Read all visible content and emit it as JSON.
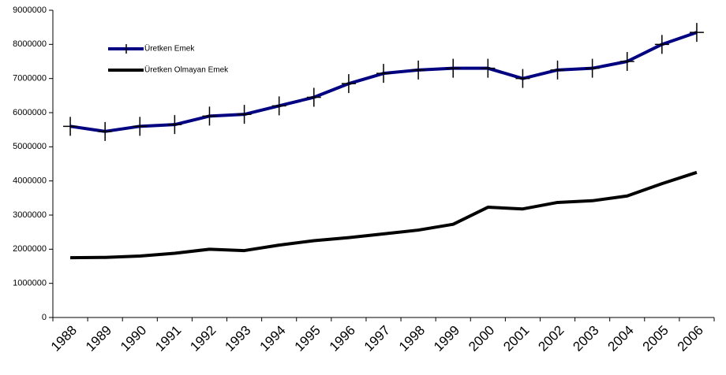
{
  "chart_data": {
    "type": "line",
    "categories": [
      "1988",
      "1989",
      "1990",
      "1991",
      "1992",
      "1993",
      "1994",
      "1995",
      "1996",
      "1997",
      "1998",
      "1999",
      "2000",
      "2001",
      "2002",
      "2003",
      "2004",
      "2005",
      "2006"
    ],
    "series": [
      {
        "name": "Üretken Emek",
        "color": "#000080",
        "marker": "+",
        "values": [
          5600000,
          5450000,
          5600000,
          5650000,
          5900000,
          5950000,
          6200000,
          6450000,
          6850000,
          7150000,
          7250000,
          7300000,
          7300000,
          7000000,
          7250000,
          7300000,
          7500000,
          8000000,
          8350000
        ]
      },
      {
        "name": "Üretken Olmayan Emek",
        "color": "#000000",
        "values": [
          1750000,
          1760000,
          1800000,
          1880000,
          2000000,
          1960000,
          2120000,
          2250000,
          2340000,
          2450000,
          2560000,
          2730000,
          3230000,
          3180000,
          3370000,
          3420000,
          3560000,
          3920000,
          4250000
        ]
      }
    ],
    "ylim": [
      0,
      9000000
    ],
    "yticks": [
      0,
      1000000,
      2000000,
      3000000,
      4000000,
      5000000,
      6000000,
      7000000,
      8000000,
      9000000
    ]
  }
}
